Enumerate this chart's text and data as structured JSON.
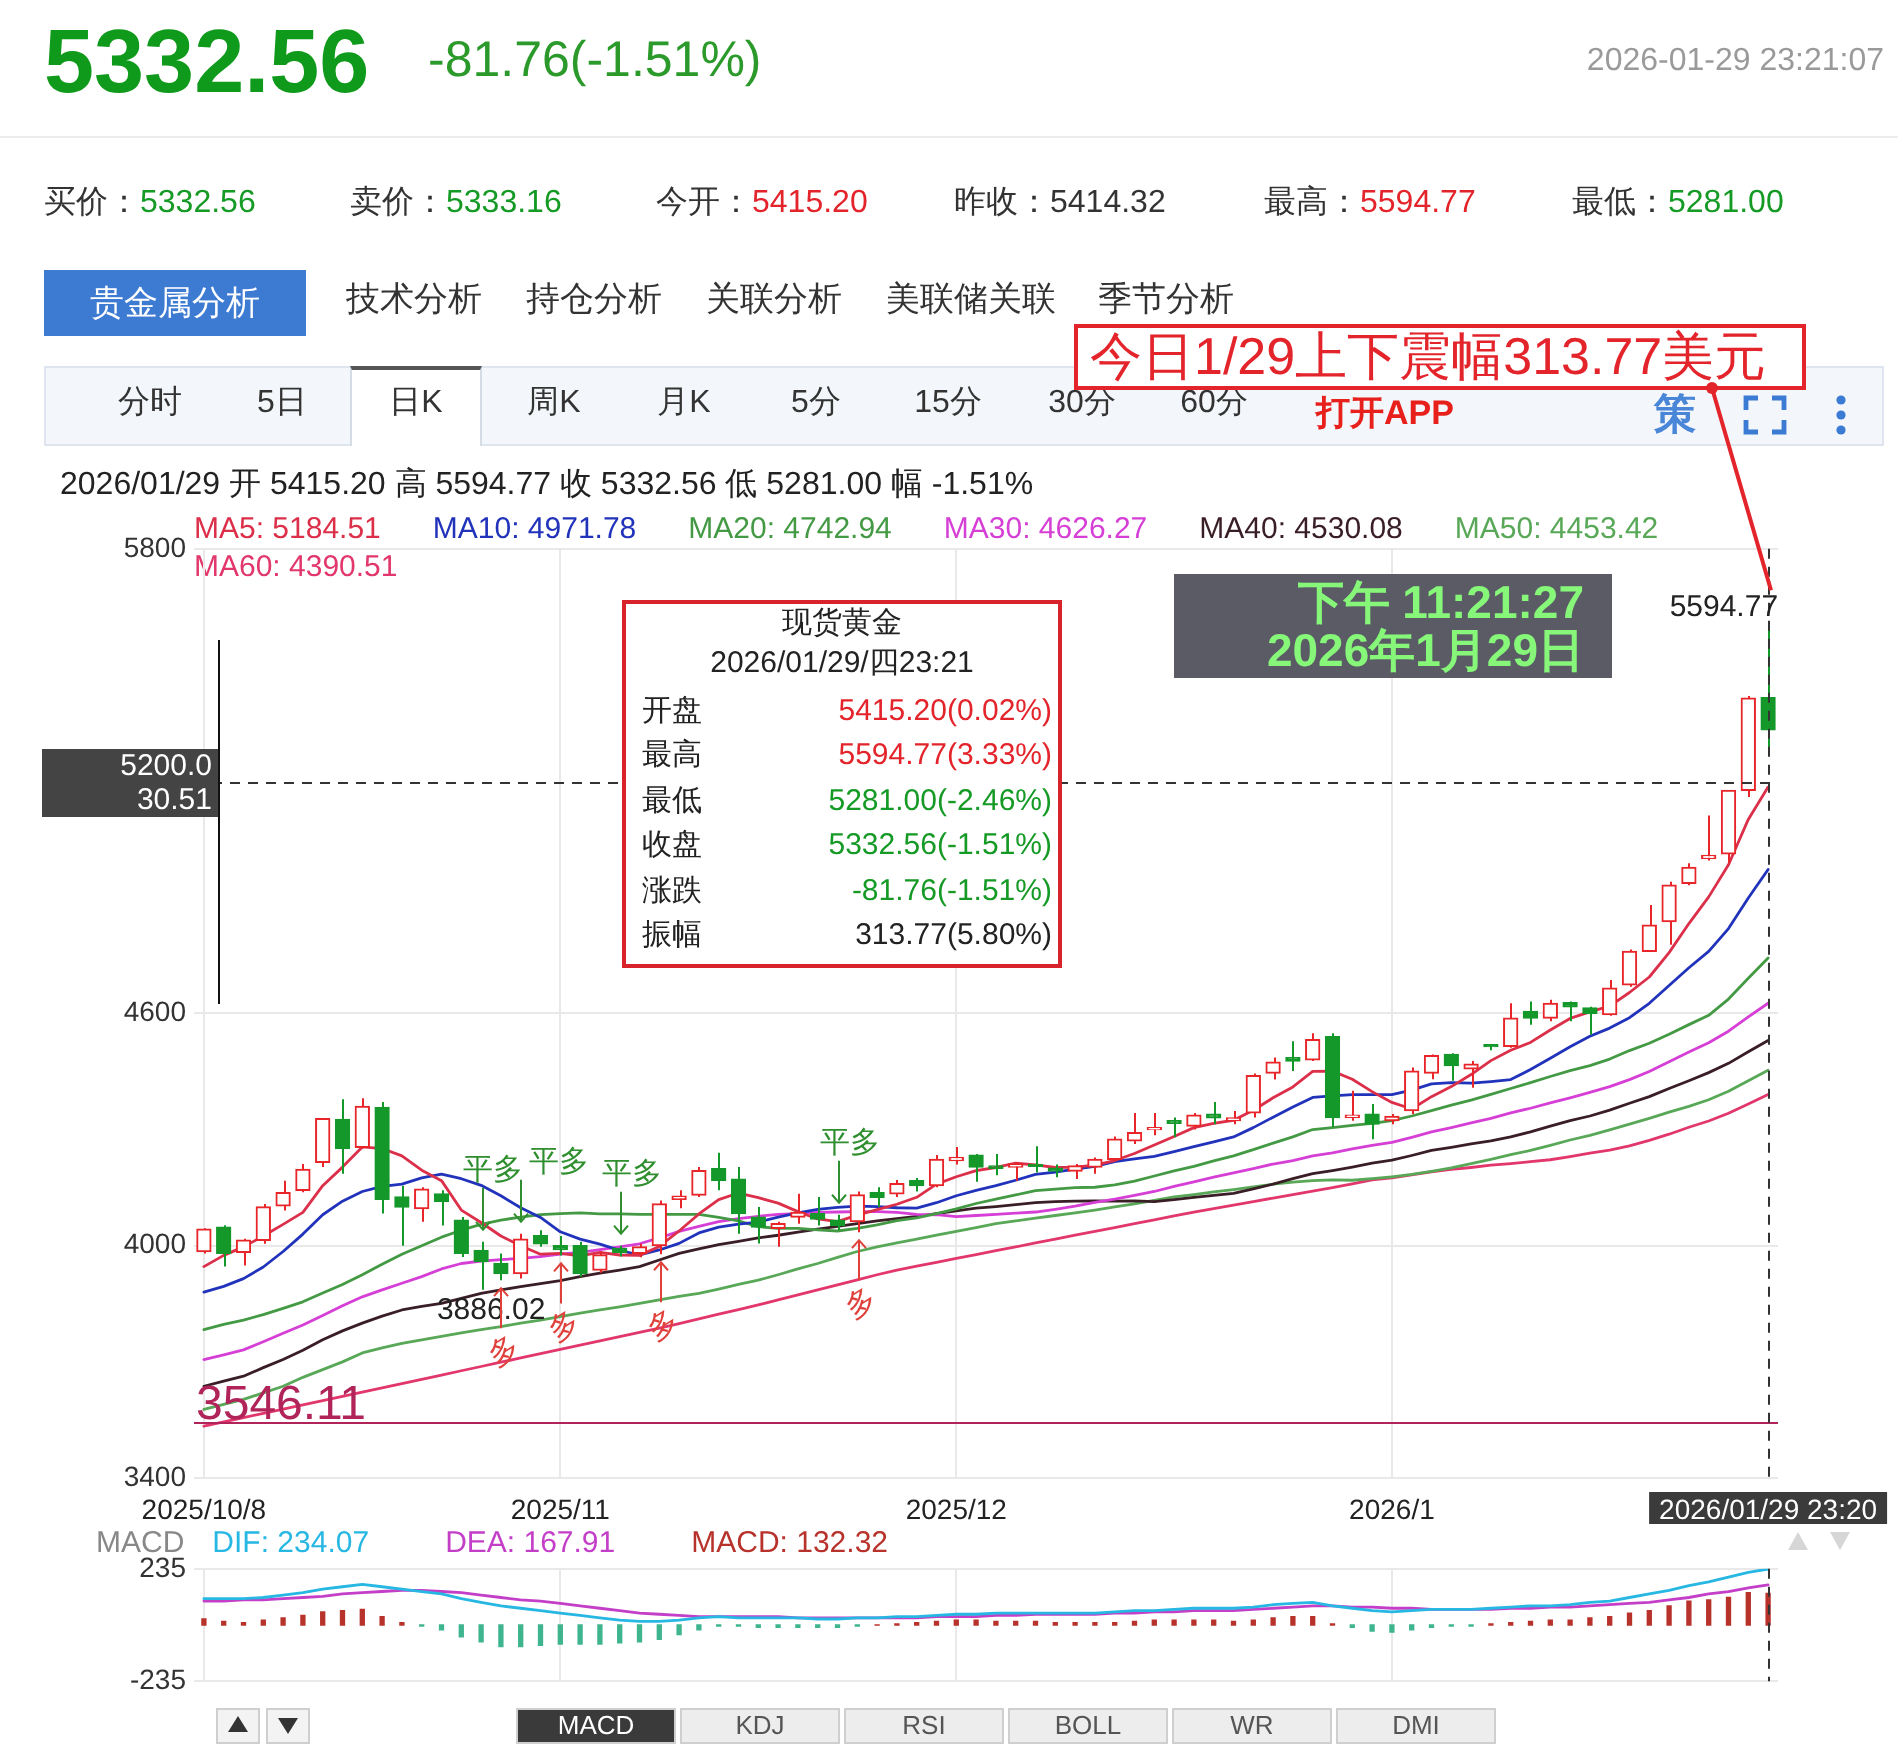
{
  "chart_data": [
    {
      "type": "other",
      "title": "5332.56",
      "subtitle": "-81.76(-1.51%)",
      "annotations": [
        "2026-01-29 23:21:07",
        "买价：",
        "5332.56",
        "卖价：",
        "5333.16",
        "今开：",
        "5415.20",
        "昨收：",
        "5414.32",
        "最高：",
        "5594.77",
        "最低：",
        "5281.00",
        "贵金属分析",
        "技术分析",
        "持仓分析",
        "关联分析",
        "美联储关联",
        "季节分析",
        "分时",
        "5日",
        "日K",
        "周K",
        "月K",
        "5分",
        "15分",
        "30分",
        "60分",
        "打开APP",
        "策"
      ]
    },
    {
      "type": "candlestick",
      "title": "2026/01/29 开 5415.20 高 5594.77 收 5332.56 低 5281.00 幅 -1.51%",
      "categories": [
        "2025/10/8",
        null,
        null,
        null,
        null,
        null,
        null,
        null,
        null,
        null,
        null,
        null,
        null,
        null,
        null,
        null,
        null,
        null,
        "2025/11",
        null,
        null,
        null,
        null,
        null,
        null,
        null,
        null,
        null,
        null,
        null,
        null,
        null,
        null,
        null,
        null,
        null,
        null,
        null,
        "2025/12",
        null,
        null,
        null,
        null,
        null,
        null,
        null,
        null,
        null,
        null,
        null,
        null,
        null,
        null,
        null,
        null,
        null,
        null,
        null,
        null,
        null,
        "2026/1",
        null,
        null,
        null,
        null,
        null,
        null,
        null,
        null,
        null,
        null,
        null,
        null,
        null,
        null,
        null,
        null,
        null,
        null,
        "2026/01/29 23:20"
      ],
      "ohlc": [
        [
          3985,
          4045,
          3980,
          4043
        ],
        [
          4048,
          4053,
          3946,
          3980
        ],
        [
          3983,
          4018,
          3949,
          4014
        ],
        [
          4014,
          4108,
          4005,
          4100
        ],
        [
          4103,
          4168,
          4091,
          4137
        ],
        [
          4143,
          4211,
          4138,
          4197
        ],
        [
          4215,
          4330,
          4203,
          4328
        ],
        [
          4326,
          4378,
          4186,
          4251
        ],
        [
          4254,
          4381,
          4251,
          4360
        ],
        [
          4357,
          4371,
          4083,
          4120
        ],
        [
          4126,
          4155,
          4000,
          4100
        ],
        [
          4096,
          4151,
          4062,
          4146
        ],
        [
          4134,
          4143,
          4052,
          4114
        ],
        [
          4066,
          4074,
          3971,
          3980
        ],
        [
          3988,
          4010,
          3886.02,
          3959
        ],
        [
          3954,
          3980,
          3911,
          3928
        ],
        [
          3928,
          4031,
          3915,
          4017
        ],
        [
          4026,
          4040,
          3997,
          4005
        ],
        [
          4000,
          4025,
          3975,
          3990
        ],
        [
          4000,
          4010,
          3920,
          3928
        ],
        [
          3937,
          3985,
          3930,
          3976
        ],
        [
          3993,
          4000,
          3972,
          3983
        ],
        [
          3980,
          4005,
          3970,
          3997
        ],
        [
          4000,
          4117,
          3978,
          4108
        ],
        [
          4120,
          4143,
          4097,
          4128
        ],
        [
          4131,
          4203,
          4126,
          4194
        ],
        [
          4199,
          4240,
          4143,
          4168
        ],
        [
          4172,
          4203,
          4031,
          4083
        ],
        [
          4074,
          4100,
          4006,
          4048
        ],
        [
          4045,
          4062,
          3997,
          4057
        ],
        [
          4074,
          4134,
          4057,
          4086
        ],
        [
          4083,
          4126,
          4052,
          4069
        ],
        [
          4066,
          4080,
          4040,
          4052
        ],
        [
          4062,
          4140,
          4035,
          4131
        ],
        [
          4137,
          4151,
          4100,
          4125
        ],
        [
          4134,
          4170,
          4126,
          4160
        ],
        [
          4168,
          4175,
          4140,
          4155
        ],
        [
          4155,
          4234,
          4151,
          4223
        ],
        [
          4220,
          4255,
          4210,
          4228
        ],
        [
          4234,
          4237,
          4165,
          4203
        ],
        [
          4206,
          4237,
          4182,
          4200
        ],
        [
          4203,
          4214,
          4168,
          4211
        ],
        [
          4210,
          4257,
          4189,
          4205
        ],
        [
          4200,
          4210,
          4177,
          4193
        ],
        [
          4193,
          4211,
          4172,
          4206
        ],
        [
          4203,
          4228,
          4186,
          4223
        ],
        [
          4223,
          4282,
          4220,
          4275
        ],
        [
          4271,
          4343,
          4263,
          4292
        ],
        [
          4300,
          4343,
          4285,
          4305
        ],
        [
          4323,
          4331,
          4280,
          4316
        ],
        [
          4309,
          4343,
          4300,
          4337
        ],
        [
          4340,
          4371,
          4314,
          4330
        ],
        [
          4323,
          4348,
          4314,
          4330
        ],
        [
          4343,
          4445,
          4331,
          4439
        ],
        [
          4446,
          4486,
          4429,
          4474
        ],
        [
          4486,
          4528,
          4451,
          4477
        ],
        [
          4480,
          4549,
          4477,
          4532
        ],
        [
          4540,
          4549,
          4306,
          4331
        ],
        [
          4331,
          4400,
          4323,
          4337
        ],
        [
          4340,
          4366,
          4275,
          4314
        ],
        [
          4323,
          4340,
          4314,
          4334
        ],
        [
          4349,
          4460,
          4340,
          4451
        ],
        [
          4446,
          4494,
          4430,
          4491
        ],
        [
          4494,
          4497,
          4426,
          4465
        ],
        [
          4457,
          4477,
          4408,
          4469
        ],
        [
          4516,
          4520,
          4505,
          4514
        ],
        [
          4515,
          4626,
          4511,
          4588
        ],
        [
          4605,
          4631,
          4571,
          4588
        ],
        [
          4588,
          4635,
          4580,
          4626
        ],
        [
          4628,
          4631,
          4580,
          4617
        ],
        [
          4614,
          4617,
          4545,
          4600
        ],
        [
          4597,
          4686,
          4594,
          4665
        ],
        [
          4674,
          4765,
          4669,
          4760
        ],
        [
          4760,
          4880,
          4760,
          4828
        ],
        [
          4837,
          4940,
          4777,
          4931
        ],
        [
          4936,
          4988,
          4931,
          4977
        ],
        [
          5000,
          5111,
          4995,
          5008
        ],
        [
          5012,
          5176,
          4988,
          5176
        ],
        [
          5176,
          5420,
          5159,
          5414.32
        ],
        [
          5415.2,
          5594.77,
          5281,
          5332.56
        ]
      ],
      "colors": [
        "#e8262a",
        "#14982a",
        "#e8262a",
        "#e8262a",
        "#e8262a",
        "#e8262a",
        "#e8262a",
        "#14982a",
        "#e8262a",
        "#14982a",
        "#14982a",
        "#e8262a",
        "#14982a",
        "#14982a",
        "#14982a",
        "#14982a",
        "#e8262a",
        "#14982a",
        "#14982a",
        "#14982a",
        "#e8262a",
        "#14982a",
        "#e8262a",
        "#e8262a",
        "#e8262a",
        "#e8262a",
        "#14982a",
        "#14982a",
        "#14982a",
        "#e8262a",
        "#e8262a",
        "#14982a",
        "#14982a",
        "#e8262a",
        "#14982a",
        "#e8262a",
        "#14982a",
        "#e8262a",
        "#e8262a",
        "#14982a",
        "#14982a",
        "#e8262a",
        "#14982a",
        "#14982a",
        "#e8262a",
        "#e8262a",
        "#e8262a",
        "#e8262a",
        "#e8262a",
        "#14982a",
        "#e8262a",
        "#14982a",
        "#e8262a",
        "#e8262a",
        "#e8262a",
        "#14982a",
        "#e8262a",
        "#14982a",
        "#e8262a",
        "#14982a",
        "#e8262a",
        "#e8262a",
        "#e8262a",
        "#14982a",
        "#e8262a",
        "#14982a",
        "#e8262a",
        "#14982a",
        "#e8262a",
        "#14982a",
        "#14982a",
        "#e8262a",
        "#e8262a",
        "#e8262a",
        "#e8262a",
        "#e8262a",
        "#e8262a",
        "#e8262a",
        "#e8262a",
        "#14982a"
      ],
      "series": [
        {
          "name": "MA5: 5184.51",
          "type": "line",
          "color": "#dc2f4a",
          "values": [
            3946,
            3975,
            3997,
            4025,
            4055,
            4086,
            4155,
            4203,
            4255,
            4251,
            4232,
            4195,
            4168,
            4092,
            4060,
            4025,
            4000,
            3978,
            3980,
            3974,
            3983,
            3976,
            3975,
            3998,
            4038,
            4082,
            4119,
            4136,
            4124,
            4110,
            4088,
            4069,
            4062,
            4079,
            4093,
            4107,
            4125,
            4159,
            4178,
            4194,
            4202,
            4213,
            4209,
            4202,
            4203,
            4208,
            4220,
            4238,
            4260,
            4282,
            4305,
            4316,
            4324,
            4350,
            4382,
            4410,
            4450,
            4451,
            4430,
            4398,
            4370,
            4353,
            4385,
            4411,
            4442,
            4478,
            4505,
            4525,
            4557,
            4587,
            4604,
            4619,
            4654,
            4694,
            4757,
            4832,
            4901,
            4984,
            5101,
            5184.51
          ]
        },
        {
          "name": "MA10: 4971.78",
          "type": "line",
          "color": "#2233bb",
          "values": [
            3880,
            3895,
            3915,
            3945,
            3985,
            4030,
            4080,
            4115,
            4140,
            4153,
            4159,
            4175,
            4185,
            4173,
            4156,
            4129,
            4098,
            4073,
            4036,
            4017,
            4004,
            3988,
            3976,
            3989,
            4006,
            4033,
            4048,
            4056,
            4061,
            4074,
            4085,
            4094,
            4099,
            4102,
            4101,
            4098,
            4097,
            4111,
            4129,
            4143,
            4155,
            4169,
            4184,
            4190,
            4198,
            4205,
            4217,
            4224,
            4231,
            4243,
            4256,
            4268,
            4281,
            4305,
            4332,
            4358,
            4383,
            4387,
            4390,
            4390,
            4390,
            4402,
            4418,
            4421,
            4420,
            4424,
            4429,
            4455,
            4484,
            4514,
            4541,
            4562,
            4589,
            4626,
            4672,
            4718,
            4760,
            4819,
            4898,
            4971.78
          ]
        },
        {
          "name": "MA20: 4742.94",
          "type": "line",
          "color": "#449a44",
          "values": [
            3783,
            3797,
            3808,
            3822,
            3838,
            3855,
            3878,
            3900,
            3925,
            3952,
            3978,
            4000,
            4022,
            4040,
            4055,
            4066,
            4074,
            4080,
            4083,
            4085,
            4082,
            4082,
            4081,
            4081,
            4081,
            4081,
            4073,
            4064,
            4049,
            4045,
            4045,
            4041,
            4038,
            4045,
            4054,
            4065,
            4072,
            4083,
            4095,
            4109,
            4120,
            4131,
            4142,
            4146,
            4150,
            4151,
            4157,
            4167,
            4180,
            4193,
            4205,
            4219,
            4232,
            4248,
            4265,
            4281,
            4300,
            4305,
            4311,
            4316,
            4323,
            4335,
            4349,
            4363,
            4376,
            4391,
            4406,
            4421,
            4437,
            4452,
            4465,
            4482,
            4504,
            4523,
            4546,
            4571,
            4595,
            4637,
            4691,
            4742.94
          ]
        },
        {
          "name": "MA30: 4626.27",
          "type": "line",
          "color": "#d63fd6",
          "values": [
            3706,
            3718,
            3731,
            3752,
            3774,
            3795,
            3820,
            3845,
            3868,
            3886,
            3903,
            3920,
            3940,
            3954,
            3960,
            3964,
            3967,
            3972,
            3978,
            3983,
            3990,
            3997,
            4005,
            4020,
            4037,
            4050,
            4062,
            4070,
            4076,
            4081,
            4083,
            4086,
            4087,
            4088,
            4088,
            4086,
            4081,
            4080,
            4075,
            4078,
            4081,
            4084,
            4087,
            4094,
            4102,
            4112,
            4120,
            4130,
            4140,
            4153,
            4165,
            4177,
            4188,
            4199,
            4211,
            4220,
            4232,
            4240,
            4250,
            4259,
            4267,
            4280,
            4294,
            4305,
            4317,
            4329,
            4343,
            4355,
            4369,
            4382,
            4396,
            4411,
            4429,
            4450,
            4475,
            4500,
            4524,
            4554,
            4591,
            4626.27
          ]
        },
        {
          "name": "MA40: 4530.08",
          "type": "line",
          "color": "#3a1e26",
          "values": [
            3637,
            3650,
            3663,
            3685,
            3706,
            3730,
            3757,
            3780,
            3800,
            3818,
            3834,
            3843,
            3851,
            3864,
            3877,
            3886,
            3894,
            3902,
            3910,
            3920,
            3929,
            3937,
            3946,
            3963,
            3980,
            3992,
            4003,
            4011,
            4020,
            4027,
            4035,
            4043,
            4050,
            4057,
            4064,
            4070,
            4076,
            4083,
            4090,
            4097,
            4101,
            4106,
            4111,
            4114,
            4115,
            4116,
            4115,
            4116,
            4114,
            4119,
            4125,
            4130,
            4135,
            4147,
            4159,
            4173,
            4186,
            4194,
            4203,
            4213,
            4221,
            4233,
            4246,
            4254,
            4263,
            4271,
            4281,
            4294,
            4309,
            4323,
            4335,
            4350,
            4368,
            4385,
            4406,
            4426,
            4447,
            4471,
            4501,
            4530.08
          ]
        },
        {
          "name": "MA50: 4453.42",
          "type": "line",
          "color": "#58a858",
          "values": [
            3577,
            3590,
            3603,
            3620,
            3637,
            3660,
            3680,
            3700,
            3723,
            3736,
            3748,
            3757,
            3766,
            3775,
            3783,
            3791,
            3800,
            3808,
            3817,
            3826,
            3834,
            3842,
            3851,
            3860,
            3869,
            3877,
            3888,
            3900,
            3911,
            3925,
            3940,
            3954,
            3970,
            3985,
            3997,
            4007,
            4017,
            4027,
            4037,
            4047,
            4057,
            4064,
            4071,
            4078,
            4085,
            4092,
            4100,
            4108,
            4117,
            4126,
            4132,
            4139,
            4145,
            4152,
            4159,
            4164,
            4168,
            4170,
            4169,
            4173,
            4178,
            4184,
            4192,
            4201,
            4212,
            4223,
            4235,
            4246,
            4259,
            4273,
            4285,
            4299,
            4314,
            4329,
            4345,
            4360,
            4377,
            4399,
            4426,
            4453.42
          ]
        },
        {
          "name": "MA60: 4390.51",
          "type": "line",
          "color": "#e2376c",
          "values": [
            3534,
            3545,
            3556,
            3567,
            3578,
            3589,
            3600,
            3611,
            3622,
            3633,
            3644,
            3655,
            3666,
            3677,
            3688,
            3699,
            3710,
            3721,
            3732,
            3743,
            3754,
            3765,
            3776,
            3787,
            3799,
            3811,
            3823,
            3835,
            3847,
            3860,
            3873,
            3886,
            3899,
            3912,
            3925,
            3937,
            3947,
            3957,
            3967,
            3977,
            3987,
            3997,
            4007,
            4017,
            4027,
            4037,
            4047,
            4057,
            4067,
            4077,
            4087,
            4096,
            4105,
            4114,
            4123,
            4132,
            4141,
            4150,
            4160,
            4170,
            4175,
            4183,
            4191,
            4197,
            4202,
            4208,
            4212,
            4217,
            4222,
            4230,
            4239,
            4247,
            4258,
            4272,
            4288,
            4306,
            4322,
            4342,
            4366,
            4390.51
          ]
        }
      ],
      "ylim": [
        3400,
        5800
      ],
      "yticks": [
        3400,
        4000,
        4600,
        5800
      ],
      "grid": true,
      "legend": "top left",
      "ref_lines": [
        {
          "axis": "y",
          "value": 3546.11,
          "label": "3546.11",
          "color": "#b0245a"
        },
        {
          "axis": "y",
          "value": 5200,
          "label": "5200.0\n30.51",
          "color": "#333333",
          "line_style": "dashed"
        },
        {
          "axis": "x",
          "value": "2026/01/29 23:20",
          "color": "#333333",
          "line_style": "dashed"
        }
      ],
      "annotations": [
        {
          "text": "5594.77",
          "x": "2026/01/29 23:20",
          "y": 5594.77
        },
        {
          "text": "3886.02",
          "y": 3886.02
        },
        {
          "text": "平多",
          "y": 4010
        },
        {
          "text": "平多",
          "y": 4031
        },
        {
          "text": "平多",
          "y": 4000
        },
        {
          "text": "平多",
          "y": 4080
        },
        {
          "text": "多",
          "y": 3911
        },
        {
          "text": "多",
          "y": 3975
        },
        {
          "text": "多",
          "y": 3978
        },
        {
          "text": "多",
          "y": 4035
        },
        "今日1/29上下震幅313.77美元",
        "现货黄金",
        "2026/01/29/四23:21",
        "开盘",
        "5415.20(0.02%)",
        "最高",
        "5594.77(3.33%)",
        "最低",
        "5281.00(-2.46%)",
        "收盘",
        "5332.56(-1.51%)",
        "涨跌",
        "-81.76(-1.51%)",
        "振幅",
        "313.77(5.80%)",
        "下午 11:21:27",
        "2026年1月29日"
      ]
    },
    {
      "type": "bar",
      "title": "MACD",
      "categories": [
        "2025/10/8",
        null,
        null,
        null,
        null,
        null,
        null,
        null,
        null,
        null,
        null,
        null,
        null,
        null,
        null,
        null,
        null,
        null,
        "2025/11",
        null,
        null,
        null,
        null,
        null,
        null,
        null,
        null,
        null,
        null,
        null,
        null,
        null,
        null,
        null,
        null,
        null,
        null,
        null,
        "2025/12",
        null,
        null,
        null,
        null,
        null,
        null,
        null,
        null,
        null,
        null,
        null,
        null,
        null,
        null,
        null,
        null,
        null,
        null,
        null,
        null,
        null,
        "2026/1",
        null,
        null,
        null,
        null,
        null,
        null,
        null,
        null,
        null,
        null,
        null,
        null,
        null,
        null,
        null,
        null,
        null,
        null,
        "2026/01/29 23:20"
      ],
      "series": [
        {
          "name": "DIF: 234.07",
          "type": "line",
          "color": "#27b7e3",
          "values": [
            110,
            110,
            110,
            115,
            125,
            135,
            150,
            160,
            170,
            160,
            150,
            140,
            130,
            110,
            95,
            80,
            70,
            60,
            50,
            40,
            30,
            20,
            15,
            15,
            20,
            30,
            35,
            30,
            30,
            30,
            30,
            25,
            25,
            30,
            30,
            35,
            35,
            40,
            45,
            45,
            50,
            50,
            50,
            50,
            50,
            50,
            55,
            60,
            60,
            65,
            70,
            70,
            70,
            75,
            85,
            90,
            95,
            80,
            70,
            60,
            55,
            60,
            65,
            65,
            65,
            70,
            75,
            80,
            80,
            85,
            95,
            100,
            115,
            130,
            145,
            165,
            180,
            200,
            220,
            234.07
          ]
        },
        {
          "name": "DEA: 167.91",
          "type": "line",
          "color": "#c43fc8",
          "values": [
            100,
            100,
            105,
            105,
            110,
            115,
            120,
            130,
            135,
            140,
            145,
            145,
            140,
            135,
            125,
            115,
            105,
            100,
            90,
            80,
            70,
            60,
            50,
            45,
            40,
            35,
            35,
            35,
            35,
            35,
            30,
            30,
            30,
            30,
            30,
            30,
            30,
            35,
            35,
            35,
            40,
            40,
            45,
            45,
            45,
            45,
            50,
            50,
            55,
            55,
            60,
            60,
            60,
            65,
            70,
            75,
            80,
            80,
            75,
            75,
            70,
            70,
            65,
            65,
            65,
            65,
            70,
            70,
            75,
            75,
            80,
            85,
            90,
            95,
            105,
            115,
            130,
            140,
            155,
            167.91
          ]
        },
        {
          "name": "MACD: 132.32",
          "type": "bar",
          "color": "#b8322c",
          "values": [
            25,
            15,
            10,
            20,
            30,
            40,
            55,
            60,
            65,
            35,
            10,
            -5,
            -20,
            -50,
            -70,
            -90,
            -90,
            -85,
            -80,
            -80,
            -80,
            -75,
            -70,
            -60,
            -40,
            -20,
            -5,
            -5,
            -10,
            -10,
            -10,
            -10,
            -10,
            -5,
            0,
            5,
            10,
            15,
            20,
            20,
            15,
            15,
            15,
            10,
            10,
            10,
            10,
            15,
            20,
            20,
            20,
            20,
            15,
            20,
            30,
            35,
            35,
            5,
            -10,
            -25,
            -30,
            -20,
            -10,
            -5,
            -5,
            5,
            10,
            15,
            20,
            20,
            30,
            35,
            50,
            60,
            80,
            100,
            105,
            115,
            135,
            132.32
          ],
          "colors": [
            "#b8322c",
            "#b8322c",
            "#b8322c",
            "#b8322c",
            "#b8322c",
            "#b8322c",
            "#b8322c",
            "#b8322c",
            "#b8322c",
            "#b8322c",
            "#b8322c",
            "#3fb58f",
            "#3fb58f",
            "#3fb58f",
            "#3fb58f",
            "#3fb58f",
            "#3fb58f",
            "#3fb58f",
            "#3fb58f",
            "#3fb58f",
            "#3fb58f",
            "#3fb58f",
            "#3fb58f",
            "#3fb58f",
            "#3fb58f",
            "#3fb58f",
            "#3fb58f",
            "#3fb58f",
            "#3fb58f",
            "#3fb58f",
            "#3fb58f",
            "#3fb58f",
            "#3fb58f",
            "#3fb58f",
            "#b8322c",
            "#b8322c",
            "#b8322c",
            "#b8322c",
            "#b8322c",
            "#b8322c",
            "#b8322c",
            "#b8322c",
            "#b8322c",
            "#b8322c",
            "#b8322c",
            "#b8322c",
            "#b8322c",
            "#b8322c",
            "#b8322c",
            "#b8322c",
            "#b8322c",
            "#b8322c",
            "#b8322c",
            "#b8322c",
            "#b8322c",
            "#b8322c",
            "#b8322c",
            "#b8322c",
            "#3fb58f",
            "#3fb58f",
            "#3fb58f",
            "#3fb58f",
            "#3fb58f",
            "#3fb58f",
            "#3fb58f",
            "#b8322c",
            "#b8322c",
            "#b8322c",
            "#b8322c",
            "#b8322c",
            "#b8322c",
            "#b8322c",
            "#b8322c",
            "#b8322c",
            "#b8322c",
            "#b8322c",
            "#b8322c",
            "#b8322c",
            "#b8322c",
            "#b8322c"
          ]
        }
      ],
      "ylim": [
        -235,
        235
      ],
      "yticks": [
        -235,
        235
      ],
      "grid": true,
      "legend": "top left",
      "tick_labels": "y",
      "ref_lines": [
        {
          "axis": "x",
          "value": "2026/01/29 23:20",
          "color": "#333333",
          "line_style": "dashed"
        }
      ],
      "annotations": [
        "MACD",
        "KDJ",
        "RSI",
        "BOLL",
        "WR",
        "DMI"
      ]
    }
  ]
}
